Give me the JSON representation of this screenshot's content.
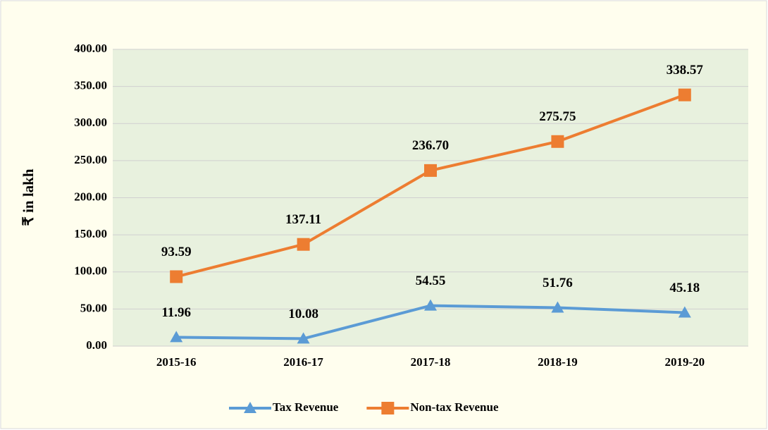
{
  "chart_data": {
    "type": "line",
    "categories": [
      "2015-16",
      "2016-17",
      "2017-18",
      "2018-19",
      "2019-20"
    ],
    "series": [
      {
        "name": "Tax Revenue",
        "color": "#5b9bd5",
        "marker": "triangle",
        "values": [
          11.96,
          10.08,
          54.55,
          51.76,
          45.18
        ],
        "value_labels": [
          "11.96",
          "10.08",
          "54.55",
          "51.76",
          "45.18"
        ]
      },
      {
        "name": "Non-tax Revenue",
        "color": "#ed7d31",
        "marker": "square",
        "values": [
          93.59,
          137.11,
          236.7,
          275.75,
          338.57
        ],
        "value_labels": [
          "93.59",
          "137.11",
          "236.70",
          "275.75",
          "338.57"
        ]
      }
    ],
    "ylabel": "₹ in lakh",
    "ylim": [
      0,
      400
    ],
    "yticks": [
      {
        "value": 0,
        "label": "0.00"
      },
      {
        "value": 50,
        "label": "50.00"
      },
      {
        "value": 100,
        "label": "100.00"
      },
      {
        "value": 150,
        "label": "150.00"
      },
      {
        "value": 200,
        "label": "200.00"
      },
      {
        "value": 250,
        "label": "250.00"
      },
      {
        "value": 300,
        "label": "300.00"
      },
      {
        "value": 350,
        "label": "350.00"
      },
      {
        "value": 400,
        "label": "400.00"
      }
    ],
    "grid": true,
    "legend": "bottom"
  }
}
